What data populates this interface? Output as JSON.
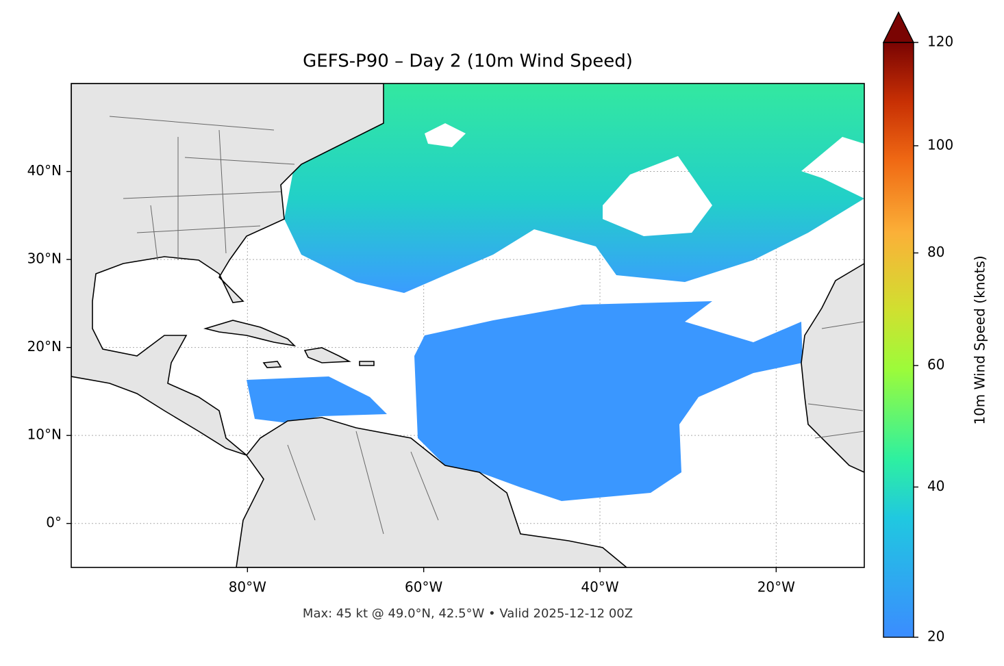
{
  "map": {
    "title": "GEFS-P90 – Day 2 (10m Wind Speed)",
    "lonlim": [
      -100,
      -10
    ],
    "latlim": [
      -5,
      50
    ],
    "lon_ticks": [
      {
        "value": -80,
        "label": "80°W"
      },
      {
        "value": -60,
        "label": "60°W"
      },
      {
        "value": -40,
        "label": "40°W"
      },
      {
        "value": -20,
        "label": "20°W"
      }
    ],
    "lat_ticks": [
      {
        "value": 0,
        "label": "0°"
      },
      {
        "value": 10,
        "label": "10°N"
      },
      {
        "value": 20,
        "label": "20°N"
      },
      {
        "value": 30,
        "label": "30°N"
      },
      {
        "value": 40,
        "label": "40°N"
      }
    ],
    "footer": "Max: 45 kt @ 49.0°N, 42.5°W • Valid 2025-12-12 00Z",
    "colorbar": {
      "label": "10m Wind Speed (knots)",
      "lim": [
        20,
        120
      ],
      "ticks": [
        20,
        40,
        60,
        80,
        100,
        120
      ]
    }
  }
}
